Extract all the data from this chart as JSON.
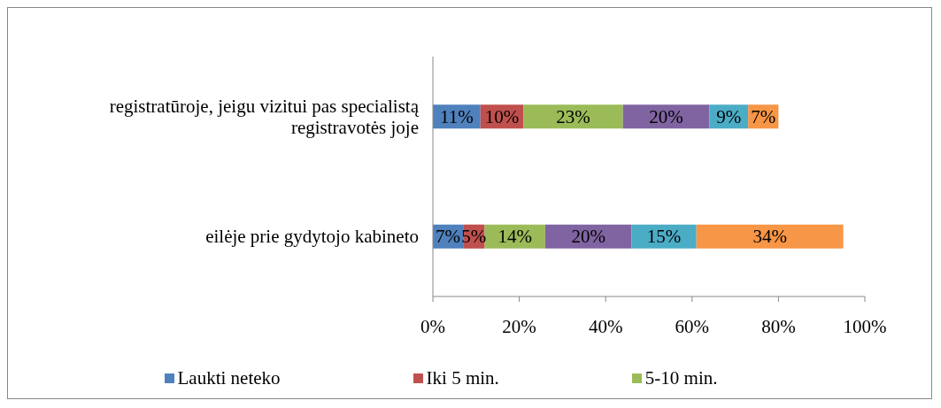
{
  "chart_data": {
    "type": "bar",
    "orientation": "horizontal",
    "stacked": true,
    "categories": [
      "registratūroje, jeigu vizitui pas specialistą registravotės joje",
      "eilėje prie gydytojo kabineto"
    ],
    "series": [
      {
        "name": "Laukti neteko",
        "color": "#4f81bd",
        "values": [
          11,
          7
        ],
        "value_labels": [
          "11%",
          "7%"
        ]
      },
      {
        "name": "Iki 5 min.",
        "color": "#c0504d",
        "values": [
          10,
          5
        ],
        "value_labels": [
          "10%",
          "5%"
        ]
      },
      {
        "name": "5-10 min.",
        "color": "#9bbb59",
        "values": [
          23,
          14
        ],
        "value_labels": [
          "23%",
          "14%"
        ]
      },
      {
        "color": "#8064a2",
        "values": [
          20,
          20
        ],
        "value_labels": [
          "20%",
          "20%"
        ]
      },
      {
        "color": "#4bacc6",
        "values": [
          9,
          15
        ],
        "value_labels": [
          "9%",
          "15%"
        ]
      },
      {
        "color": "#f79646",
        "values": [
          7,
          34
        ],
        "value_labels": [
          "7%",
          "34%"
        ]
      }
    ],
    "xlim": [
      0,
      100
    ],
    "xticks": [
      {
        "value": 0,
        "label": "0%"
      },
      {
        "value": 20,
        "label": "20%"
      },
      {
        "value": 40,
        "label": "40%"
      },
      {
        "value": 60,
        "label": "60%"
      },
      {
        "value": 80,
        "label": "80%"
      },
      {
        "value": 100,
        "label": "100%"
      }
    ],
    "grid": false,
    "legend": "bottom"
  }
}
